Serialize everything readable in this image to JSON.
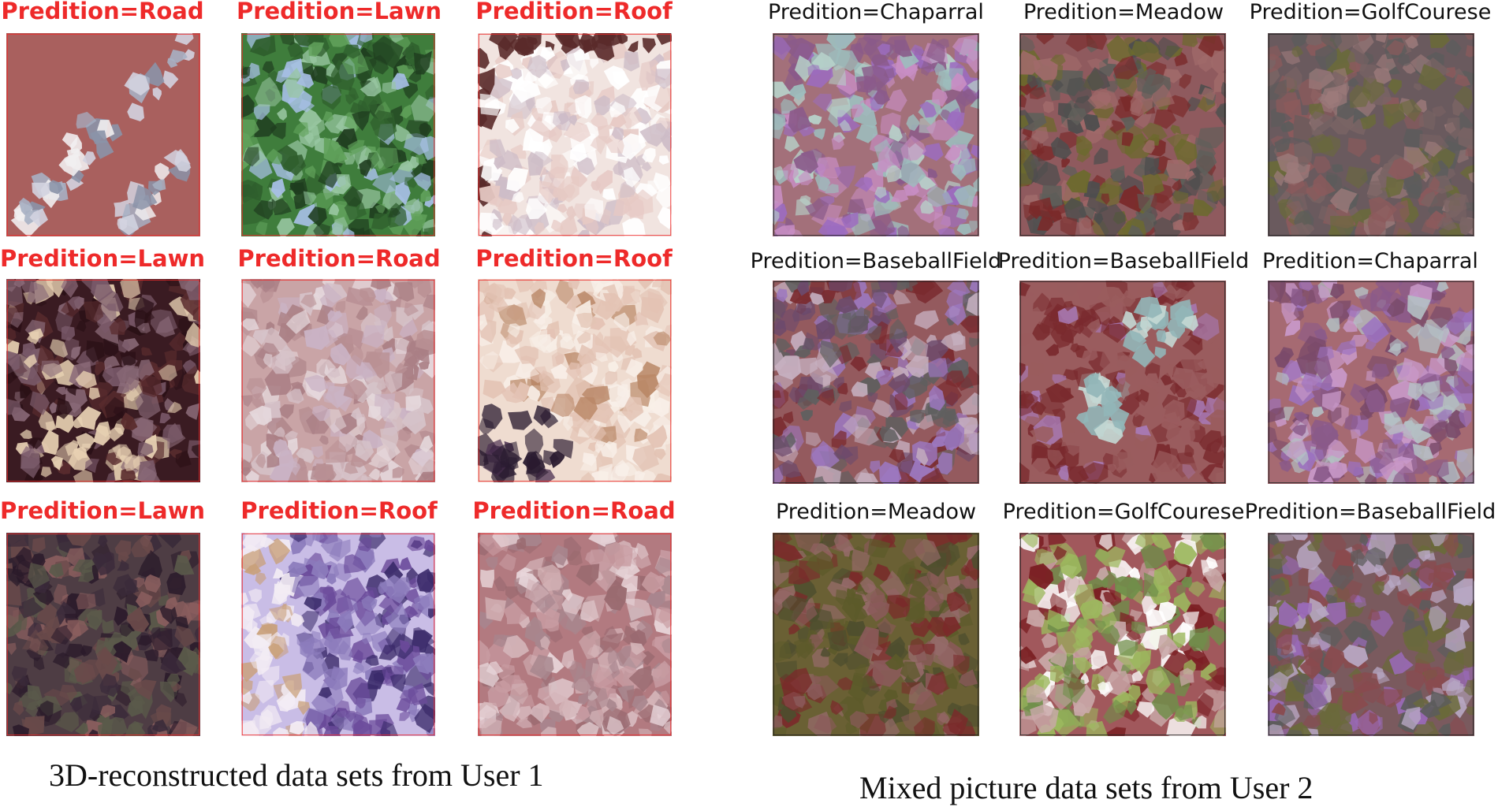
{
  "left_panel": {
    "caption": "3D-reconstructed data sets from User 1",
    "tiles": [
      {
        "label": "Predition=Road",
        "base": "#a9605e",
        "palette": [
          "#d3d3e0",
          "#8b93a8",
          "#f1eef0",
          "#a7b0c3",
          "#6f5d70"
        ],
        "motif": "diag-band"
      },
      {
        "label": "Predition=Lawn",
        "base": "#3f7d3c",
        "palette": [
          "#2f5f2d",
          "#62a35c",
          "#98c6a1",
          "#a7bfe6",
          "#1f3d1f"
        ],
        "motif": "mottled"
      },
      {
        "label": "Predition=Roof",
        "base": "#f1e4e0",
        "palette": [
          "#e6c9c4",
          "#cdbcc7",
          "#ffffff",
          "#5a2a2a",
          "#c8a08a"
        ],
        "motif": "roof-top"
      },
      {
        "label": "Predition=Lawn",
        "base": "#3a1b22",
        "palette": [
          "#5a2c2e",
          "#7a5a6a",
          "#8a6a78",
          "#e7d0b2",
          "#2a1016"
        ],
        "motif": "dark-mottled"
      },
      {
        "label": "Predition=Road",
        "base": "#c9a4a6",
        "palette": [
          "#b99094",
          "#d6c3c9",
          "#e5d8dc",
          "#aa7f85",
          "#cab3c5"
        ],
        "motif": "mottled"
      },
      {
        "label": "Predition=Roof",
        "base": "#efdcd0",
        "palette": [
          "#e3c3b4",
          "#f8efe8",
          "#2a1b30",
          "#4a2f50",
          "#ba8868"
        ],
        "motif": "roof-corner"
      },
      {
        "label": "Predition=Lawn",
        "base": "#4e3d44",
        "palette": [
          "#6a4a4a",
          "#3a2a3a",
          "#8a5e5e",
          "#5a5a4a",
          "#2a1a2a"
        ],
        "motif": "dark-mottled"
      },
      {
        "label": "Predition=Roof",
        "base": "#c9bde6",
        "palette": [
          "#6a4a9a",
          "#f3ecf4",
          "#8c7cbc",
          "#3a2a6a",
          "#c9a07a"
        ],
        "motif": "split"
      },
      {
        "label": "Predition=Road",
        "base": "#b27a80",
        "palette": [
          "#c89ca2",
          "#e8d6da",
          "#9a6a70",
          "#d4b4b8",
          "#a8868e"
        ],
        "motif": "mottled"
      }
    ]
  },
  "right_panel": {
    "caption": "Mixed picture data sets from User 2",
    "tiles": [
      {
        "label": "Predition=Chaparral",
        "base": "#a3707a",
        "palette": [
          "#9dbdbd",
          "#9c6cc0",
          "#c88ec4",
          "#8a5a8a",
          "#b7d1c9"
        ],
        "motif": "mottled"
      },
      {
        "label": "Predition=Meadow",
        "base": "#8f5a5e",
        "palette": [
          "#5f5f5a",
          "#6c6a2e",
          "#7a2a2a",
          "#a06a6a",
          "#4e4e4e"
        ],
        "motif": "mottled"
      },
      {
        "label": "Predition=GolfCourese",
        "base": "#6a5a5e",
        "palette": [
          "#8c5a5c",
          "#5c5c5c",
          "#6a6a3a",
          "#9c7a7a",
          "#7a6464"
        ],
        "motif": "mottled"
      },
      {
        "label": "Predition=BaseballField",
        "base": "#945a5e",
        "palette": [
          "#5f5f5f",
          "#7a2a2e",
          "#9c78c0",
          "#c6b0c0",
          "#6c4a6c"
        ],
        "motif": "mottled"
      },
      {
        "label": "Predition=BaseballField",
        "base": "#9a5c5e",
        "palette": [
          "#92b6b8",
          "#7a2a2e",
          "#a87ab8",
          "#c4d8d4",
          "#6a4a5c"
        ],
        "motif": "blobs"
      },
      {
        "label": "Predition=Chaparral",
        "base": "#a66a72",
        "palette": [
          "#9c72c0",
          "#c898c8",
          "#8a5a8a",
          "#b4c0c4",
          "#7a4a6a"
        ],
        "motif": "mottled"
      },
      {
        "label": "Predition=Meadow",
        "base": "#6a6034",
        "palette": [
          "#5c5a2a",
          "#7a2a2a",
          "#8a5a5a",
          "#4e4e2e",
          "#966a6a"
        ],
        "motif": "mottled"
      },
      {
        "label": "Predition=GolfCourese",
        "base": "#a1585c",
        "palette": [
          "#9cb85e",
          "#c9a8a8",
          "#7a1e22",
          "#ffffff",
          "#6f8e4a"
        ],
        "motif": "mottled"
      },
      {
        "label": "Predition=BaseballField",
        "base": "#7a5a5e",
        "palette": [
          "#5c5c5c",
          "#9a6ab8",
          "#6a6a3a",
          "#8a4a4e",
          "#b8a8c4"
        ],
        "motif": "mottled"
      }
    ]
  },
  "colors": {
    "left_label": "#ee2a2a",
    "right_label": "#111111",
    "left_frame": "#ee2a2a",
    "right_frame": "#222222"
  }
}
